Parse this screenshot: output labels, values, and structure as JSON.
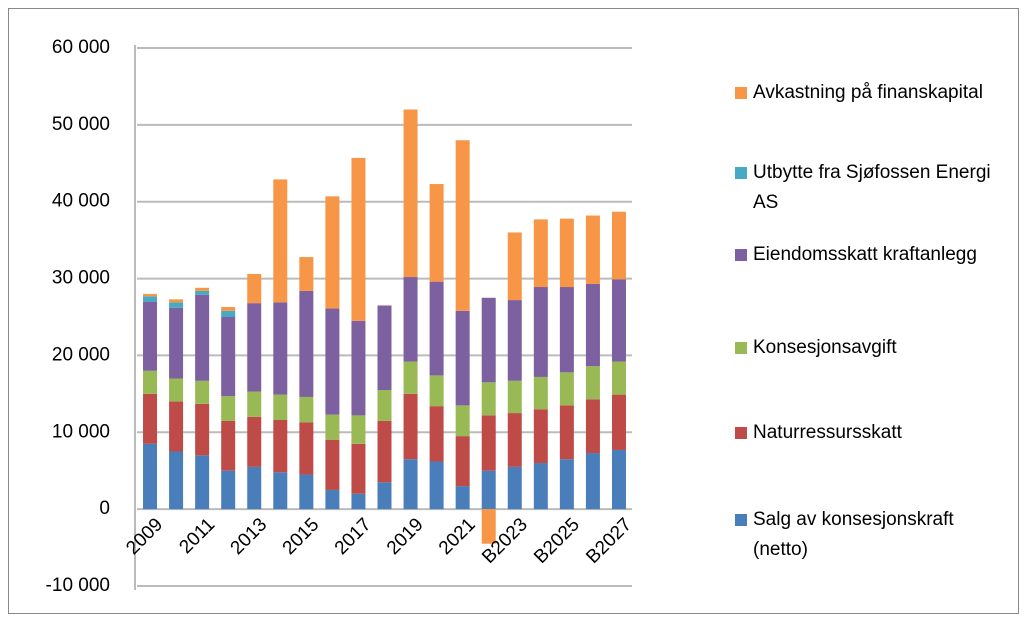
{
  "chart_data": {
    "type": "bar",
    "stacked": true,
    "categories": [
      "2009",
      null,
      "2011",
      null,
      "2013",
      null,
      "2015",
      null,
      "2017",
      null,
      "2019",
      null,
      "2021",
      null,
      "B2023",
      null,
      "B2025",
      null,
      "B2027"
    ],
    "series": [
      {
        "name": "Salg av konsesjonskraft (netto)",
        "color": "#4a7ebb",
        "values": [
          8500,
          7500,
          7000,
          5000,
          5500,
          4800,
          4500,
          2500,
          2000,
          3500,
          6500,
          6200,
          3000,
          5000,
          5500,
          6000,
          6500,
          7300,
          7700
        ]
      },
      {
        "name": "Naturressursskatt",
        "color": "#be4b48",
        "values": [
          6500,
          6500,
          6700,
          6500,
          6500,
          6800,
          6800,
          6500,
          6500,
          8000,
          8500,
          7200,
          6500,
          7200,
          7000,
          7000,
          7000,
          7000,
          7200
        ]
      },
      {
        "name": "Konsesjonsavgift",
        "color": "#98b954",
        "values": [
          3000,
          3000,
          3000,
          3200,
          3300,
          3300,
          3300,
          3300,
          3700,
          4000,
          4200,
          4000,
          4000,
          4300,
          4200,
          4200,
          4300,
          4300,
          4300
        ]
      },
      {
        "name": "Eiendomsskatt kraftanlegg",
        "color": "#7d60a0",
        "values": [
          9000,
          9200,
          11200,
          10300,
          11500,
          12000,
          13800,
          13800,
          12300,
          11000,
          11000,
          12200,
          12300,
          11000,
          10500,
          11700,
          11100,
          10700,
          10700
        ]
      },
      {
        "name": "Utbytte fra Sjøfossen Energi AS",
        "color": "#46aac5",
        "values": [
          700,
          700,
          500,
          800,
          0,
          0,
          0,
          0,
          0,
          0,
          0,
          0,
          0,
          0,
          0,
          0,
          0,
          0,
          0
        ]
      },
      {
        "name": "Avkastning på finanskapital",
        "color": "#f79646",
        "values": [
          300,
          400,
          400,
          500,
          3800,
          16000,
          4400,
          14600,
          21200,
          0,
          21800,
          12700,
          22200,
          -4500,
          8800,
          8800,
          8900,
          8900,
          8800
        ]
      }
    ],
    "ylim": [
      -10000,
      60000
    ],
    "yticks": [
      {
        "value": -10000,
        "label": "-10 000"
      },
      0,
      {
        "value": 10000,
        "label": "10 000"
      },
      {
        "value": 20000,
        "label": "20 000"
      },
      {
        "value": 30000,
        "label": "30 000"
      },
      {
        "value": 40000,
        "label": "40 000"
      },
      {
        "value": 50000,
        "label": "50 000"
      },
      {
        "value": 60000,
        "label": "60 000"
      }
    ],
    "grid": true,
    "legend": "right"
  }
}
